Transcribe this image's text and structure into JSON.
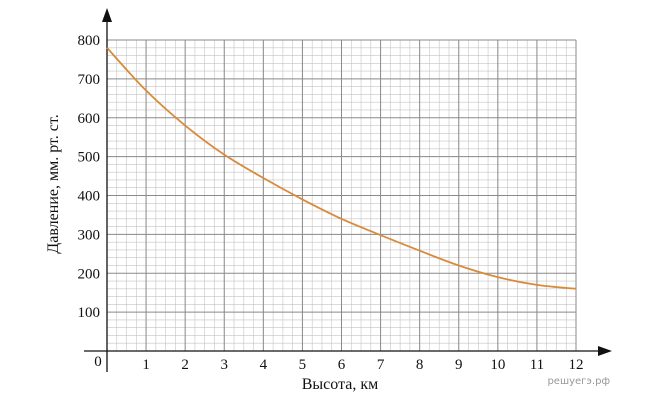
{
  "chart_data": {
    "type": "line",
    "xlabel": "Высота, км",
    "ylabel": "Давление, мм. рт. ст.",
    "origin_label": "0",
    "xlim": [
      0,
      12
    ],
    "ylim": [
      0,
      800
    ],
    "x_ticks": [
      1,
      2,
      3,
      4,
      5,
      6,
      7,
      8,
      9,
      10,
      11,
      12
    ],
    "y_ticks": [
      100,
      200,
      300,
      400,
      500,
      600,
      700,
      800
    ],
    "x_minor_step": 0.25,
    "y_minor_step": 20,
    "grid": true,
    "series": [
      {
        "color": "#d98a3a",
        "x": [
          0,
          1,
          2,
          3,
          4,
          5,
          6,
          7,
          8,
          9,
          10,
          11,
          12
        ],
        "y": [
          780,
          670,
          580,
          505,
          445,
          390,
          340,
          298,
          258,
          220,
          190,
          170,
          160
        ]
      }
    ]
  },
  "watermark": "решуегэ.рф"
}
